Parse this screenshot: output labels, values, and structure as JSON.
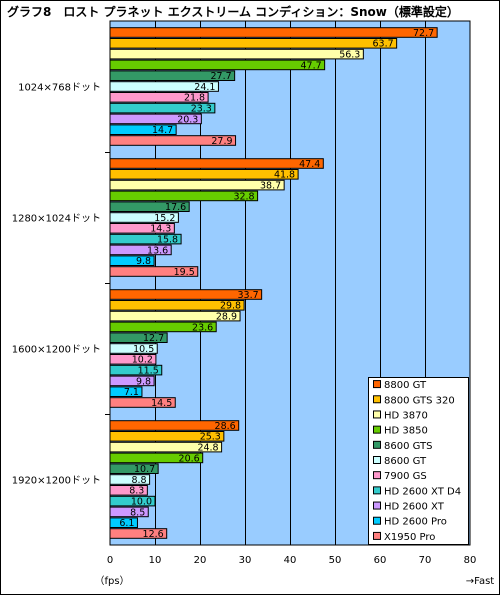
{
  "chart_data": {
    "type": "bar",
    "orientation": "horizontal",
    "title": "グラフ8　ロスト プラネット エクストリーム コンディション：Snow（標準設定）",
    "categories": [
      "1024×768ドット",
      "1280×1024ドット",
      "1600×1200ドット",
      "1920×1200ドット"
    ],
    "series": [
      {
        "name": "8800 GT",
        "color": "#ff6600",
        "values": [
          72.7,
          47.4,
          33.7,
          28.6
        ]
      },
      {
        "name": "8800 GTS 320",
        "color": "#ffc000",
        "values": [
          63.7,
          41.8,
          29.8,
          25.3
        ]
      },
      {
        "name": "HD 3870",
        "color": "#ffffaa",
        "values": [
          56.3,
          38.7,
          28.9,
          24.8
        ]
      },
      {
        "name": "HD 3850",
        "color": "#66cc00",
        "values": [
          47.7,
          32.8,
          23.6,
          20.6
        ]
      },
      {
        "name": "8600 GTS",
        "color": "#339966",
        "values": [
          27.7,
          17.6,
          12.7,
          10.7
        ]
      },
      {
        "name": "8600 GT",
        "color": "#ccffff",
        "values": [
          24.1,
          15.2,
          10.5,
          8.8
        ]
      },
      {
        "name": "7900 GS",
        "color": "#ff99cc",
        "values": [
          21.8,
          14.3,
          10.2,
          8.3
        ]
      },
      {
        "name": "HD 2600 XT D4",
        "color": "#33cccc",
        "values": [
          23.3,
          15.8,
          11.5,
          10.0
        ]
      },
      {
        "name": "HD 2600 XT",
        "color": "#cc99ff",
        "values": [
          20.3,
          13.6,
          9.8,
          8.5
        ]
      },
      {
        "name": "HD 2600 Pro",
        "color": "#00ccff",
        "values": [
          14.7,
          9.8,
          7.1,
          6.1
        ]
      },
      {
        "name": "X1950 Pro",
        "color": "#ff8080",
        "values": [
          27.9,
          19.5,
          14.5,
          12.6
        ]
      }
    ],
    "xlim": [
      0,
      80
    ],
    "x_ticks": [
      0,
      10,
      20,
      30,
      40,
      50,
      60,
      70,
      80
    ],
    "xlabel": "（fps）",
    "xlabel_right": "→Fast",
    "plot_background": "#99ccff",
    "grid": true,
    "legend_position": "bottom-right"
  }
}
